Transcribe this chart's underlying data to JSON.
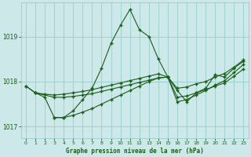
{
  "xlabel": "Graphe pression niveau de la mer (hPa)",
  "bg_color": "#cce8e8",
  "grid_color": "#99cccc",
  "line_color": "#1a5c1a",
  "text_color": "#1a5c1a",
  "ylim": [
    1016.75,
    1019.75
  ],
  "xlim": [
    -0.5,
    23.5
  ],
  "yticks": [
    1017,
    1018,
    1019
  ],
  "xticks": [
    0,
    1,
    2,
    3,
    4,
    5,
    6,
    7,
    8,
    9,
    10,
    11,
    12,
    13,
    14,
    15,
    16,
    17,
    18,
    19,
    20,
    21,
    22,
    23
  ],
  "series": [
    {
      "x": [
        0,
        1,
        2,
        3,
        4,
        5,
        6,
        7,
        8,
        9,
        10,
        11,
        12,
        13,
        14,
        15,
        16,
        17,
        18,
        19,
        20,
        21,
        22,
        23
      ],
      "y": [
        1017.9,
        1017.75,
        1017.65,
        1017.2,
        1017.2,
        1017.35,
        1017.6,
        1017.85,
        1018.3,
        1018.85,
        1019.25,
        1019.6,
        1019.15,
        1019.0,
        1018.5,
        1018.1,
        1017.8,
        1017.55,
        1017.75,
        1017.85,
        1018.15,
        1018.1,
        1018.3,
        1018.45
      ]
    },
    {
      "x": [
        0,
        1,
        2,
        3,
        4,
        5,
        6,
        7,
        8,
        9,
        10,
        11,
        12,
        13,
        14,
        15,
        16,
        17,
        18,
        19,
        20,
        21,
        22,
        23
      ],
      "y": [
        1017.9,
        1017.75,
        1017.72,
        1017.7,
        1017.72,
        1017.75,
        1017.78,
        1017.82,
        1017.87,
        1017.92,
        1017.97,
        1018.02,
        1018.07,
        1018.12,
        1018.17,
        1018.1,
        1017.85,
        1017.88,
        1017.95,
        1018.0,
        1018.1,
        1018.18,
        1018.32,
        1018.48
      ]
    },
    {
      "x": [
        1,
        3,
        4,
        5,
        6,
        7,
        8,
        9,
        10,
        11,
        12,
        13,
        14,
        15,
        16,
        17,
        18,
        19,
        20,
        21,
        22,
        23
      ],
      "y": [
        1017.75,
        1017.65,
        1017.65,
        1017.67,
        1017.7,
        1017.73,
        1017.78,
        1017.83,
        1017.88,
        1017.93,
        1017.98,
        1018.03,
        1018.08,
        1018.1,
        1017.65,
        1017.68,
        1017.75,
        1017.82,
        1017.9,
        1017.97,
        1018.12,
        1018.28
      ]
    },
    {
      "x": [
        3,
        4,
        5,
        6,
        7,
        8,
        9,
        10,
        11,
        12,
        13,
        14,
        15,
        16,
        17,
        18,
        19,
        20,
        21,
        22,
        23
      ],
      "y": [
        1017.2,
        1017.2,
        1017.25,
        1017.32,
        1017.4,
        1017.5,
        1017.6,
        1017.7,
        1017.8,
        1017.9,
        1018.0,
        1018.08,
        1018.1,
        1017.55,
        1017.6,
        1017.7,
        1017.8,
        1017.92,
        1018.02,
        1018.2,
        1018.38
      ]
    }
  ]
}
